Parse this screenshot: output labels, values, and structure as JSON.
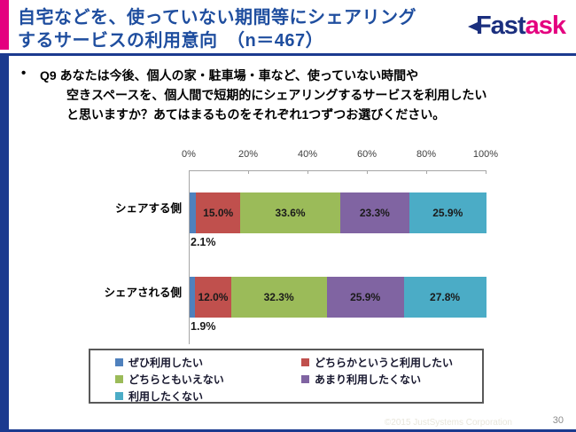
{
  "header": {
    "title_line1": "自宅などを、使っていない期間等にシェアリング",
    "title_line2": "するサービスの利用意向　（n＝467）",
    "logo": {
      "text_fast": "Fast",
      "text_ask": "ask"
    }
  },
  "question": {
    "bullet": "•",
    "line1": "Q9 あなたは今後、個人の家・駐車場・車など、使っていない時間や",
    "line2": "空きスペースを、個人間で短期的にシェアリングするサービスを利用したい",
    "line3": "と思いますか？あてはまるものをそれぞれ1つずつお選びください。"
  },
  "chart_data": {
    "type": "bar",
    "orientation": "horizontal",
    "stacked": true,
    "title": "シェアリングするサービスの利用意向",
    "categories": [
      "シェアする側",
      "シェアされる側"
    ],
    "series": [
      {
        "name": "ぜひ利用したい",
        "color": "#4F81BD",
        "values": [
          2.1,
          1.9
        ]
      },
      {
        "name": "どちらかというと利用したい",
        "color": "#C0504D",
        "values": [
          15.0,
          12.0
        ]
      },
      {
        "name": "どちらともいえない",
        "color": "#9BBB59",
        "values": [
          33.6,
          32.3
        ]
      },
      {
        "name": "あまり利用したくない",
        "color": "#8064A2",
        "values": [
          23.3,
          25.9
        ]
      },
      {
        "name": "利用したくない",
        "color": "#4BACC6",
        "values": [
          25.9,
          27.8
        ]
      }
    ],
    "x_axis": {
      "tick_labels": [
        "0%",
        "20%",
        "40%",
        "60%",
        "80%",
        "100%"
      ],
      "tick_values": [
        0,
        20,
        40,
        60,
        80,
        100
      ],
      "range": [
        0,
        100
      ],
      "position": "top"
    },
    "data_label_format": "0.0%",
    "first_series_label_position": "below-bar-left",
    "legend_position": "bottom",
    "grid": false
  },
  "footer": {
    "copyright": "©2015 JustSystems Corporation",
    "page_number": "30"
  },
  "colors": {
    "accent_magenta": "#E4007F",
    "accent_navy": "#1B3A8F",
    "title_blue": "#1F4E9F",
    "axis_gray": "#A6A6A6",
    "legend_border": "#595959"
  }
}
